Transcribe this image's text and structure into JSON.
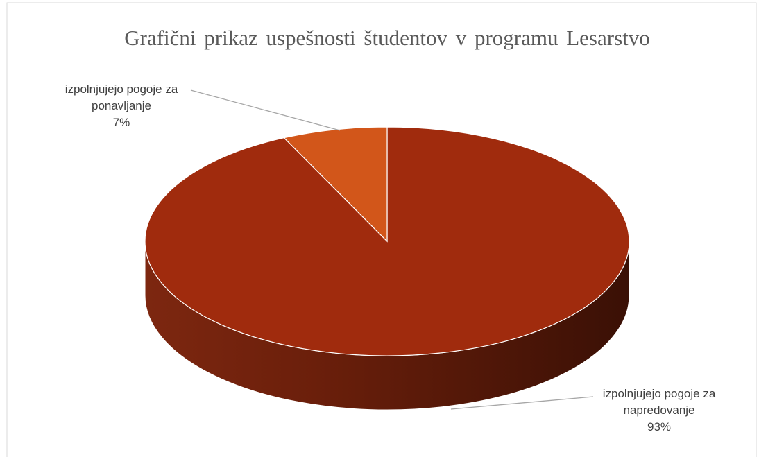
{
  "chart_data": {
    "type": "pie3d",
    "title": "Grafični prikaz uspešnosti študentov v programu Lesarstvo",
    "categories": [
      "izpolnjujejo pogoje za napredovanje",
      "izpolnjujejo pogoje za ponavljanje"
    ],
    "values": [
      93,
      7
    ],
    "value_labels": [
      "93%",
      "7%"
    ],
    "colors": [
      "#a02b0d",
      "#d2561a"
    ]
  }
}
